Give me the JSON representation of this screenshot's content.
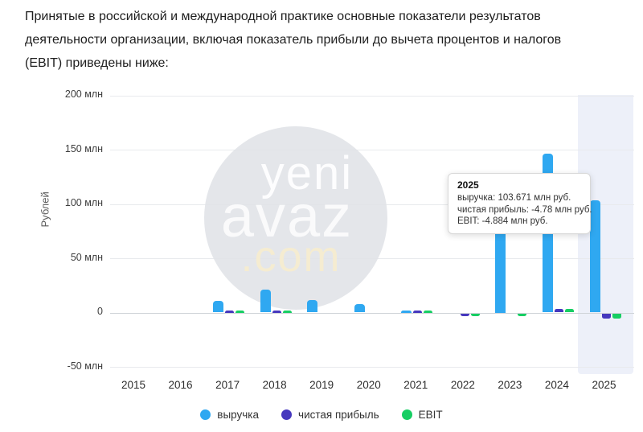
{
  "header": {
    "lines": [
      "Принятые в российской и международной практике основные показатели результатов",
      "деятельности организации, включая показатель прибыли до вычета процентов и налогов",
      "(EBIT) приведены ниже:"
    ]
  },
  "colors": {
    "revenue": "#2FA8F1",
    "net_profit": "#4638BE",
    "ebit": "#17CE63",
    "highlight_band": "#EDF0F9",
    "grid": "#E8EAED",
    "zero_line": "#CFD3D8"
  },
  "chart_data": {
    "type": "bar",
    "title": "",
    "ylabel": "Рублей",
    "unit": "млн руб.",
    "categories": [
      "2015",
      "2016",
      "2017",
      "2018",
      "2019",
      "2020",
      "2021",
      "2022",
      "2023",
      "2024",
      "2025"
    ],
    "series": [
      {
        "key": "revenue",
        "name": "выручка",
        "values": [
          0,
          0,
          11,
          21,
          11.5,
          8,
          2,
          0,
          95,
          146,
          103.671
        ]
      },
      {
        "key": "net_profit",
        "name": "чистая прибыль",
        "values": [
          0,
          0,
          2,
          1.8,
          0,
          0,
          0.7,
          -1.2,
          0,
          3.5,
          -4.78
        ]
      },
      {
        "key": "ebit",
        "name": "EBIT",
        "values": [
          0,
          0,
          2,
          1.8,
          0,
          0,
          0.6,
          -1,
          -1.2,
          3,
          -4.884
        ]
      }
    ],
    "y_ticks": [
      {
        "label": "200 млн",
        "value": 200
      },
      {
        "label": "150 млн",
        "value": 150
      },
      {
        "label": "100 млн",
        "value": 100
      },
      {
        "label": "50 млн",
        "value": 50
      },
      {
        "label": "0",
        "value": 0
      },
      {
        "label": "-50 млн",
        "value": -50
      }
    ],
    "ylim": [
      -50,
      200
    ],
    "grid": true,
    "legend_position": "bottom",
    "highlighted_category": "2025"
  },
  "tooltip": {
    "title": "2025",
    "lines": [
      "выручка: 103.671 млн руб.",
      "чистая прибыль: -4.78 млн руб.",
      "EBIT: -4.884 млн руб."
    ]
  },
  "watermark": {
    "line1": "yeni",
    "line2": "avaz",
    "line3": ".com"
  }
}
